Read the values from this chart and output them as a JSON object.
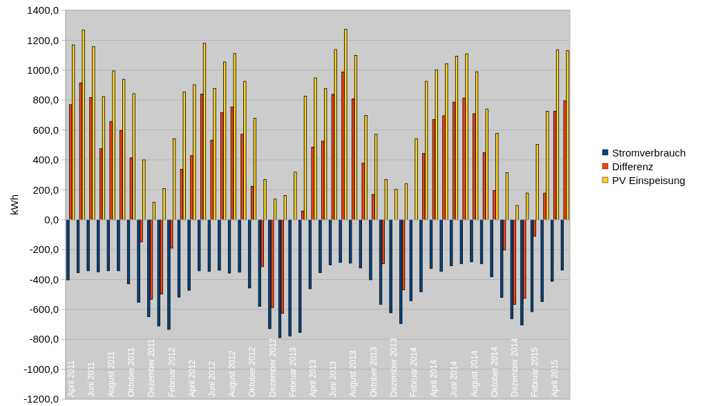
{
  "chart_data": {
    "type": "bar",
    "ylabel": "kWh",
    "categories": [
      "April 2011",
      null,
      "Juni 2011",
      null,
      "August 2011",
      null,
      "Oktober 2011",
      null,
      "Dezember 2011",
      null,
      "Februar 2012",
      null,
      "April 2012",
      null,
      "Juni 2012",
      null,
      "August 2012",
      null,
      "Oktober 2012",
      null,
      "Dezember 2012",
      null,
      "Februar 2013",
      null,
      "April 2013",
      null,
      "Juni 2013",
      null,
      "August 2013",
      null,
      "Oktober 2013",
      null,
      "Dezember 2013",
      null,
      "Februar 2014",
      null,
      "April 2014",
      null,
      "Juni 2014",
      null,
      "August 2014",
      null,
      "Oktober 2014",
      null,
      "Dezember 2014",
      null,
      "Februar 2015",
      null,
      "April 2015",
      null
    ],
    "series": [
      {
        "name": "Stromverbrauch",
        "color": "#004586",
        "values": [
          -403,
          -354,
          -342,
          -349,
          -342,
          -342,
          -429,
          -552,
          -649,
          -711,
          -734,
          -518,
          -472,
          -342,
          -346,
          -338,
          -357,
          -351,
          -457,
          -580,
          -729,
          -789,
          -778,
          -754,
          -462,
          -354,
          -302,
          -286,
          -291,
          -323,
          -402,
          -566,
          -623,
          -695,
          -542,
          -482,
          -326,
          -346,
          -308,
          -295,
          -282,
          -295,
          -382,
          -520,
          -663,
          -705,
          -615,
          -548,
          -412,
          -337
        ]
      },
      {
        "name": "Differenz",
        "color": "#ff420e",
        "values": [
          769,
          915,
          817,
          475,
          657,
          597,
          414,
          -149,
          -532,
          -498,
          -190,
          337,
          429,
          840,
          532,
          717,
          754,
          572,
          223,
          -314,
          -588,
          -626,
          null,
          58,
          485,
          525,
          838,
          988,
          808,
          378,
          169,
          -295,
          null,
          -469,
          null,
          443,
          669,
          695,
          786,
          814,
          709,
          448,
          195,
          -203,
          -566,
          -526,
          -111,
          178,
          725,
          795
        ]
      },
      {
        "name": "PV Einspeisung",
        "color": "#ffd320",
        "values": [
          1169,
          1268,
          1157,
          823,
          995,
          938,
          843,
          400,
          117,
          209,
          542,
          855,
          902,
          1180,
          877,
          1054,
          1111,
          925,
          678,
          268,
          138,
          162,
          318,
          826,
          948,
          878,
          1138,
          1274,
          1098,
          697,
          571,
          268,
          203,
          240,
          542,
          925,
          1002,
          1043,
          1094,
          1109,
          989,
          740,
          577,
          315,
          95,
          178,
          503,
          725,
          1137,
          1131
        ]
      }
    ],
    "ylim": [
      -1200,
      1400
    ],
    "yticks": [
      {
        "value": -1200,
        "label": "-1200,0"
      },
      {
        "value": -1000,
        "label": "-1000,0"
      },
      {
        "value": -800,
        "label": "-800,0"
      },
      {
        "value": -600,
        "label": "-600,0"
      },
      {
        "value": -400,
        "label": "-400,0"
      },
      {
        "value": -200,
        "label": "-200,0"
      },
      {
        "value": 0,
        "label": "0,0"
      },
      {
        "value": 200,
        "label": "200,0"
      },
      {
        "value": 400,
        "label": "400,0"
      },
      {
        "value": 600,
        "label": "600,0"
      },
      {
        "value": 800,
        "label": "800,0"
      },
      {
        "value": 1000,
        "label": "1000,0"
      },
      {
        "value": 1200,
        "label": "1200,0"
      },
      {
        "value": 1400,
        "label": "1400,0"
      }
    ],
    "grid": "y",
    "legend": "right"
  }
}
